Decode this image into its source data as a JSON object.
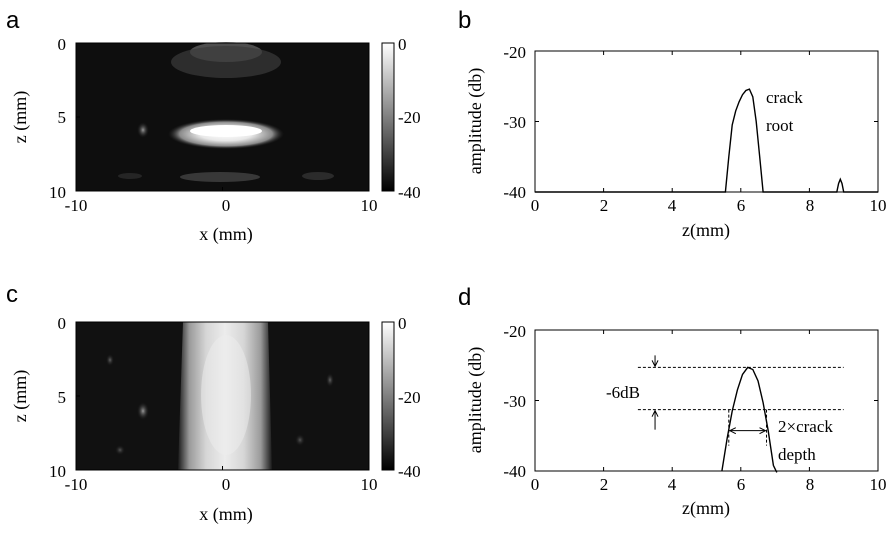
{
  "chart_data": [
    {
      "panel_label": "a",
      "type": "heatmap",
      "xlabel": "x (mm)",
      "ylabel": "z (mm)",
      "xlim": [
        -10,
        10
      ],
      "ylim": [
        0,
        10
      ],
      "x_ticks": [
        "-10",
        "0",
        "10"
      ],
      "y_ticks": [
        "0",
        "5",
        "10"
      ],
      "colorbar": {
        "range": [
          -40,
          0
        ],
        "ticks": [
          "0",
          "-20",
          "-40"
        ]
      },
      "features": [
        {
          "label": "bright horizontal reflector",
          "x_range": [
            -3.5,
            3.5
          ],
          "z": 6.1
        }
      ]
    },
    {
      "panel_label": "b",
      "type": "line",
      "xlabel": "z(mm)",
      "ylabel": "amplitude (db)",
      "xlim": [
        0,
        10
      ],
      "ylim": [
        -40,
        -20
      ],
      "x_ticks": [
        "0",
        "2",
        "4",
        "6",
        "8",
        "10"
      ],
      "y_ticks": [
        "-20",
        "-30",
        "-40"
      ],
      "series": [
        {
          "x": [
            0,
            5.55,
            5.65,
            5.75,
            5.85,
            5.95,
            6.05,
            6.15,
            6.25,
            6.35,
            6.45,
            6.55,
            6.65,
            6.75,
            8.8,
            8.85,
            8.9,
            8.95,
            9.0,
            9.05,
            10
          ],
          "y": [
            -40,
            -40,
            -35,
            -30.5,
            -28.5,
            -27.2,
            -26.2,
            -25.6,
            -25.4,
            -26.5,
            -30,
            -35,
            -40,
            -40,
            -40,
            -38.8,
            -38.2,
            -38.8,
            -40,
            -40,
            -40
          ]
        }
      ],
      "annotation": {
        "line1": "crack",
        "line2": "root",
        "x": 6.7,
        "y": -26.5
      }
    },
    {
      "panel_label": "c",
      "type": "heatmap",
      "xlabel": "x (mm)",
      "ylabel": "z (mm)",
      "xlim": [
        -10,
        10
      ],
      "ylim": [
        0,
        10
      ],
      "x_ticks": [
        "-10",
        "0",
        "10"
      ],
      "y_ticks": [
        "0",
        "5",
        "10"
      ],
      "colorbar": {
        "range": [
          -40,
          0
        ],
        "ticks": [
          "0",
          "-20",
          "-40"
        ]
      },
      "features": [
        {
          "label": "bright vertical band",
          "x_range": [
            -3,
            3
          ],
          "z_range": [
            0,
            10
          ]
        }
      ]
    },
    {
      "panel_label": "d",
      "type": "line",
      "xlabel": "z(mm)",
      "ylabel": "amplitude (db)",
      "xlim": [
        0,
        10
      ],
      "ylim": [
        -40,
        -20
      ],
      "x_ticks": [
        "0",
        "2",
        "4",
        "6",
        "8",
        "10"
      ],
      "y_ticks": [
        "-20",
        "-30",
        "-40"
      ],
      "series": [
        {
          "x": [
            5.45,
            5.6,
            5.75,
            5.9,
            6.05,
            6.2,
            6.35,
            6.5,
            6.65,
            6.8,
            6.95,
            7.05
          ],
          "y": [
            -40,
            -35.4,
            -31.5,
            -28.5,
            -26.3,
            -25.3,
            -25.6,
            -27.2,
            -30.3,
            -34.3,
            -39.2,
            -40.2
          ]
        }
      ],
      "reference_lines": [
        {
          "y": -25.3,
          "x_range": [
            3.0,
            9.0
          ]
        },
        {
          "y": -31.3,
          "x_range": [
            3.0,
            9.0
          ]
        }
      ],
      "annotations": {
        "minus6db": "-6dB",
        "width_line1": "2×crack",
        "width_line2": "depth"
      },
      "width_marker": {
        "x_from": 5.65,
        "x_to": 6.75
      }
    }
  ]
}
